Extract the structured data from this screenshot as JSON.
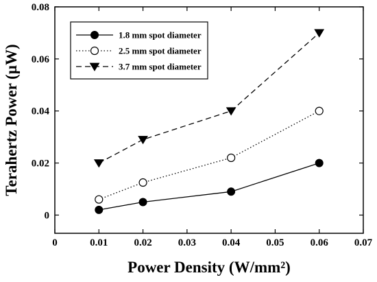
{
  "chart_data": {
    "type": "line",
    "xlabel": "Power Density (W/mm²)",
    "ylabel": "Terahertz Power (µW)",
    "xlim": [
      0,
      0.07
    ],
    "ylim": [
      -0.007,
      0.08
    ],
    "x_ticks": [
      "0",
      "0.01",
      "0.02",
      "0.03",
      "0.04",
      "0.05",
      "0.06",
      "0.07"
    ],
    "x_tick_values": [
      0,
      0.01,
      0.02,
      0.03,
      0.04,
      0.05,
      0.06,
      0.07
    ],
    "y_ticks": [
      "0",
      "0.02",
      "0.04",
      "0.06",
      "0.08"
    ],
    "y_tick_values": [
      0,
      0.02,
      0.04,
      0.06,
      0.08
    ],
    "grid": false,
    "legend_position": "top-left",
    "series": [
      {
        "name": "1.8 mm spot diameter",
        "marker": "filled-circle",
        "line_style": "solid",
        "color": "#000000",
        "x": [
          0.01,
          0.02,
          0.04,
          0.06
        ],
        "y": [
          0.002,
          0.005,
          0.009,
          0.02
        ]
      },
      {
        "name": "2.5 mm spot diameter",
        "marker": "open-circle",
        "line_style": "dotted",
        "color": "#000000",
        "x": [
          0.01,
          0.02,
          0.04,
          0.06
        ],
        "y": [
          0.006,
          0.0125,
          0.022,
          0.04
        ]
      },
      {
        "name": "3.7 mm spot diameter",
        "marker": "filled-triangle-down",
        "line_style": "dashed",
        "color": "#000000",
        "x": [
          0.01,
          0.02,
          0.04,
          0.06
        ],
        "y": [
          0.02,
          0.029,
          0.04,
          0.07
        ]
      }
    ]
  }
}
